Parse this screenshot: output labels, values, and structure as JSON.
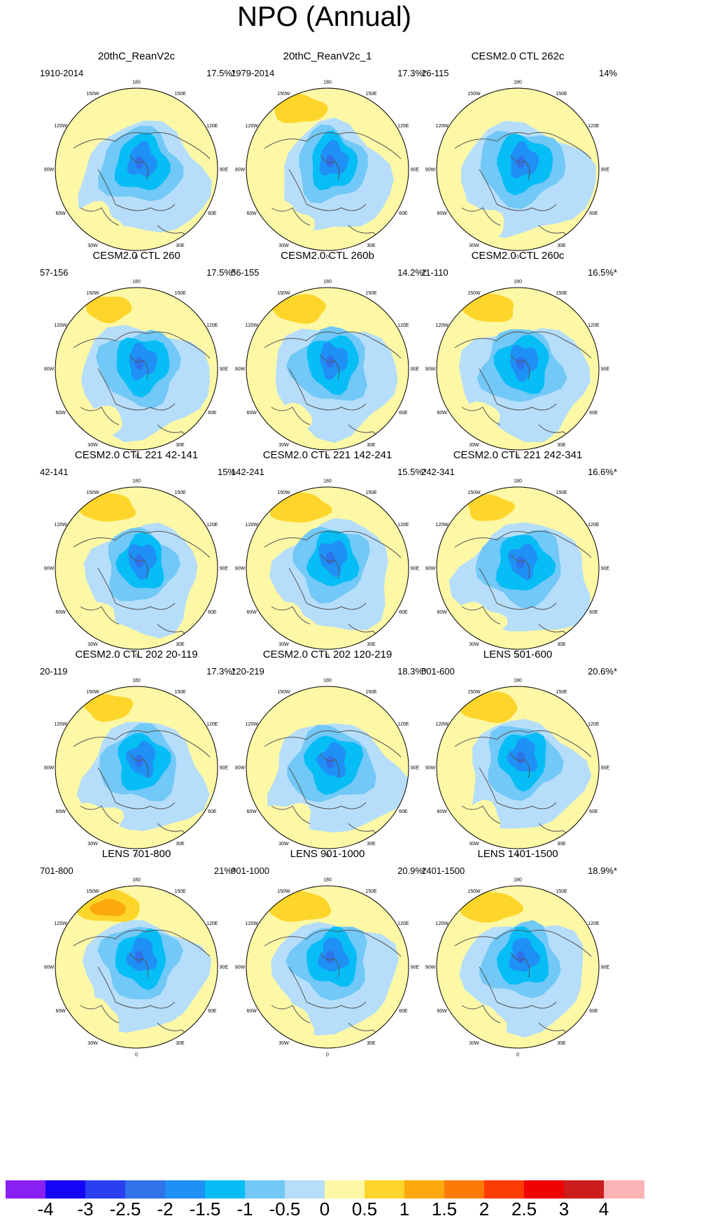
{
  "title": "NPO (Annual)",
  "colors": {
    "levels": [
      "#8a1ff2",
      "#1406f5",
      "#2a40f0",
      "#2f72ea",
      "#1f90f5",
      "#07bdf6",
      "#72c8f6",
      "#b6defa",
      "#fdf8a6",
      "#fed52b",
      "#fca90e",
      "#fc7a08",
      "#fc3b05",
      "#ee0404",
      "#cc1c1e",
      "#fab4b6"
    ],
    "land": "#555555"
  },
  "lon_labels": [
    "180",
    "150E",
    "120E",
    "90E",
    "60E",
    "30E",
    "0",
    "30W",
    "60W",
    "90W",
    "120W",
    "150W"
  ],
  "panels": [
    {
      "title": "20thC_ReanV2c",
      "period": "1910-2014",
      "pct": "17.5%*"
    },
    {
      "title": "20thC_ReanV2c_1",
      "period": "1979-2014",
      "pct": "17.3%*"
    },
    {
      "title": "CESM2.0 CTL 262c",
      "period": "16-115",
      "pct": "14%"
    },
    {
      "title": "CESM2.0 CTL 260",
      "period": "57-156",
      "pct": "17.5%*"
    },
    {
      "title": "CESM2.0 CTL 260b",
      "period": "56-155",
      "pct": "14.2%*"
    },
    {
      "title": "CESM2.0 CTL 260c",
      "period": "11-110",
      "pct": "16.5%*"
    },
    {
      "title": "CESM2.0 CTL 221 42-141",
      "period": "42-141",
      "pct": "15%"
    },
    {
      "title": "CESM2.0 CTL 221 142-241",
      "period": "142-241",
      "pct": "15.5%*"
    },
    {
      "title": "CESM2.0 CTL 221 242-341",
      "period": "242-341",
      "pct": "16.6%*"
    },
    {
      "title": "CESM2.0 CTL 202 20-119",
      "period": "20-119",
      "pct": "17.3%*"
    },
    {
      "title": "CESM2.0 CTL 202 120-219",
      "period": "120-219",
      "pct": "18.3%*"
    },
    {
      "title": "LENS 501-600",
      "period": "501-600",
      "pct": "20.6%*"
    },
    {
      "title": "LENS 701-800",
      "period": "701-800",
      "pct": "21%*"
    },
    {
      "title": "LENS 901-1000",
      "period": "901-1000",
      "pct": "20.9%*"
    },
    {
      "title": "LENS 1401-1500",
      "period": "1401-1500",
      "pct": "18.9%*"
    }
  ],
  "colorbar": {
    "labels": [
      "-4",
      "-3",
      "-2.5",
      "-2",
      "-1.5",
      "-1",
      "-0.5",
      "0",
      "0.5",
      "1",
      "1.5",
      "2",
      "2.5",
      "3",
      "4"
    ]
  }
}
